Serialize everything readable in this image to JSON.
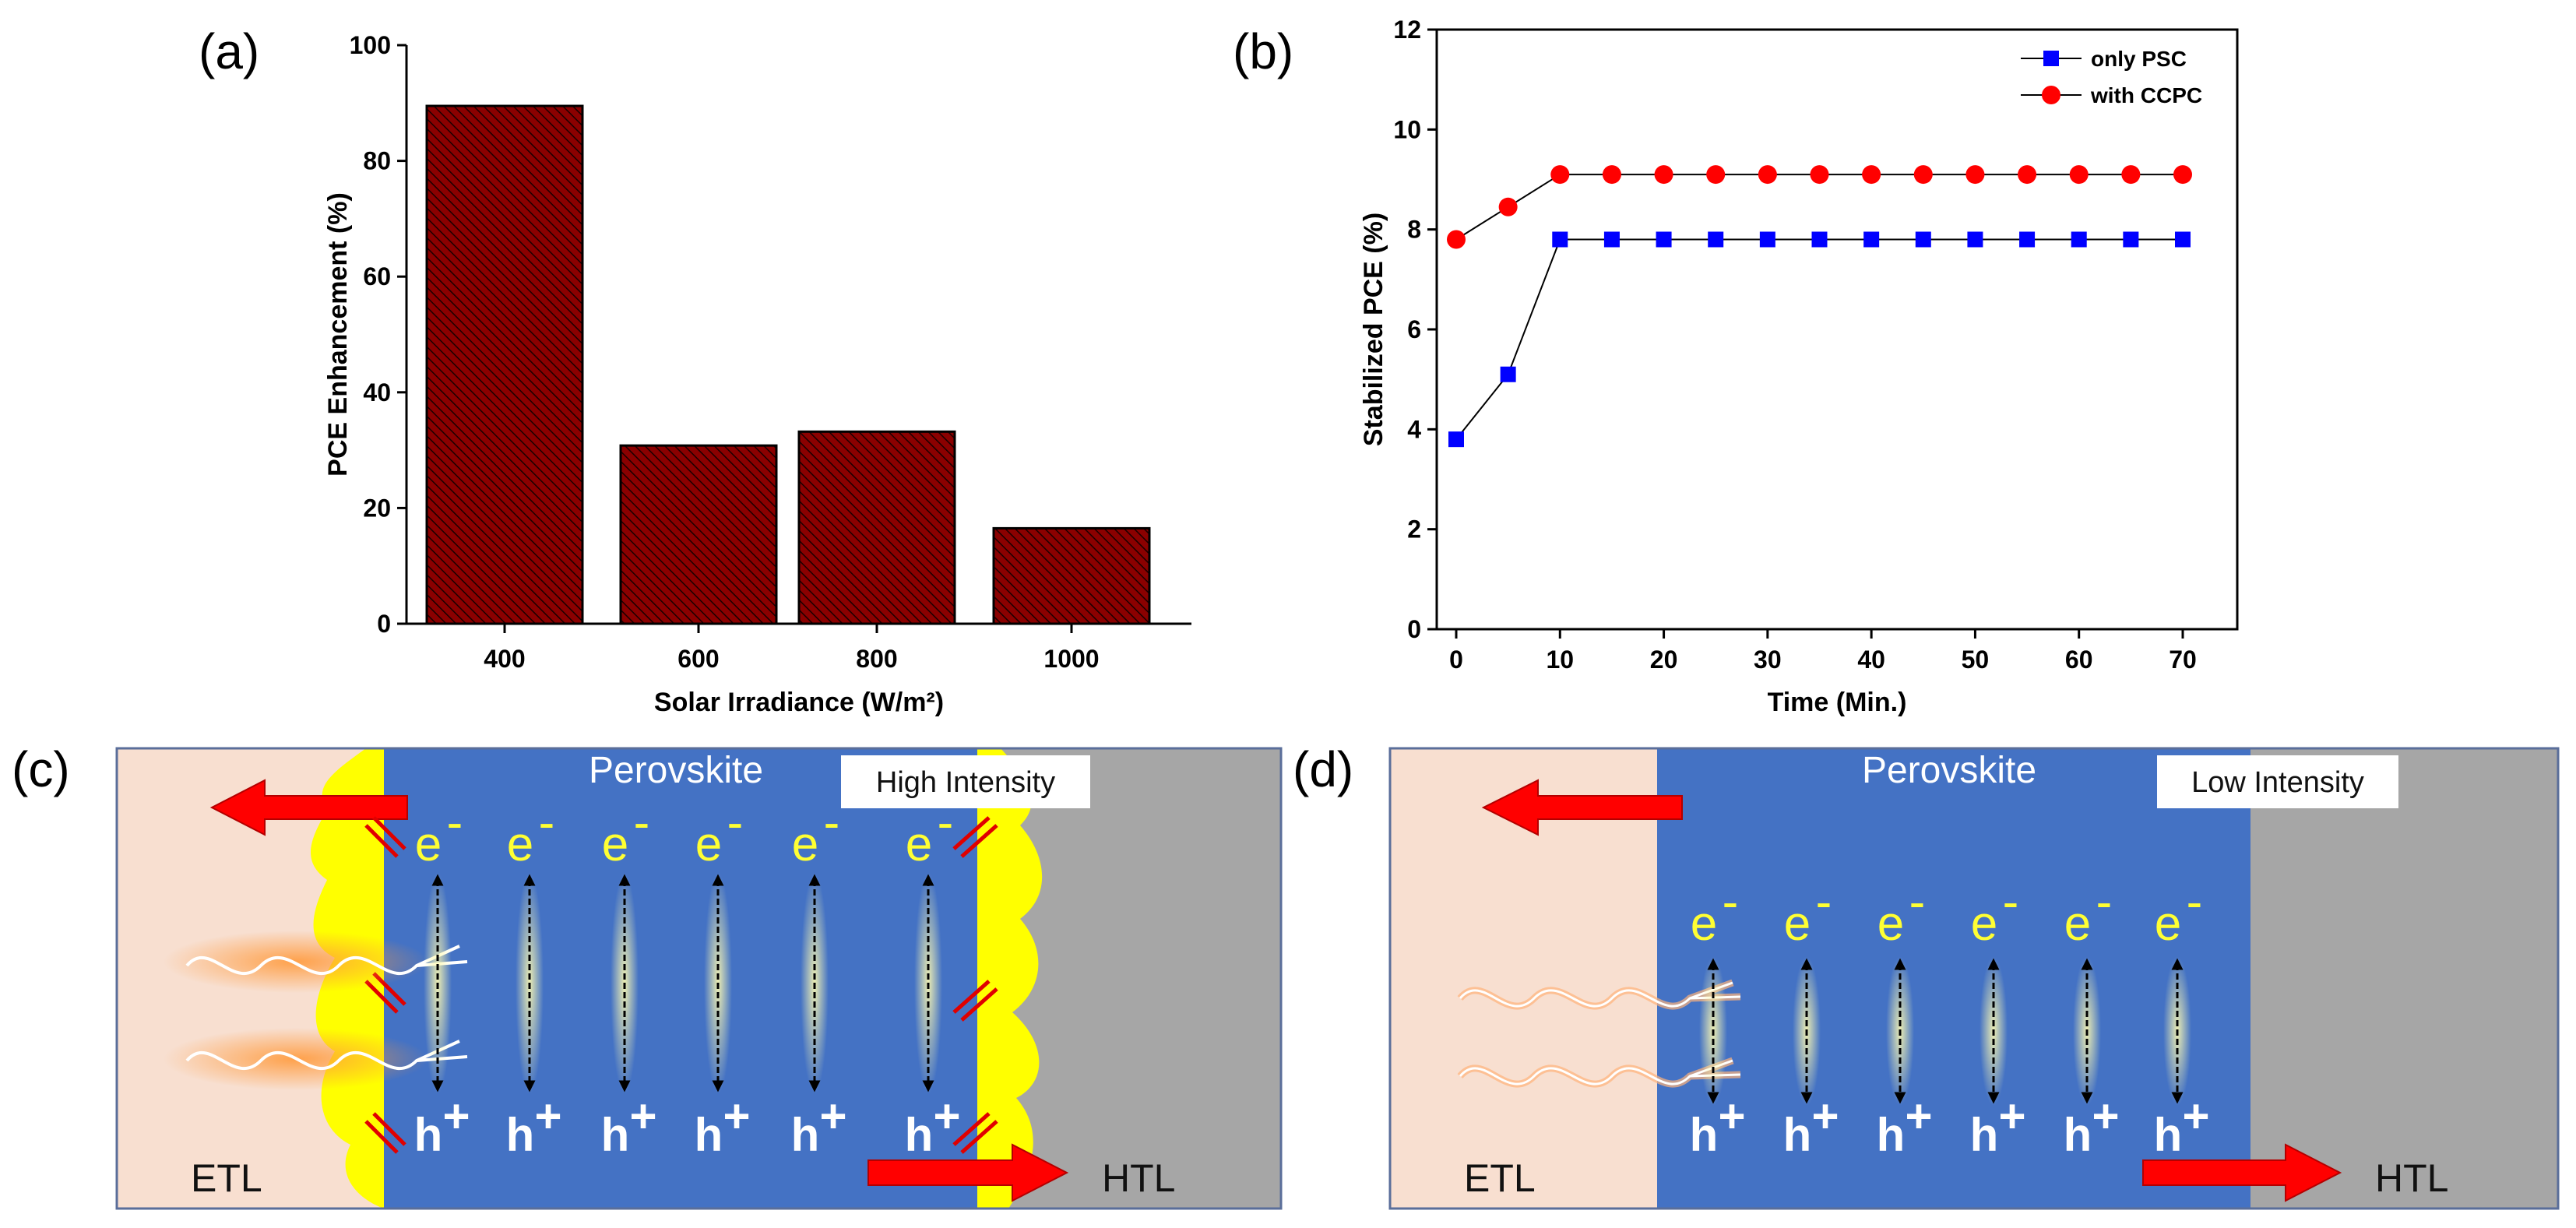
{
  "chart_data": [
    {
      "panel": "(a)",
      "type": "bar",
      "categories": [
        "400",
        "600",
        "800",
        "1000"
      ],
      "values": [
        89.5,
        30.8,
        33.2,
        16.5
      ],
      "xlabel": "Solar Irradiance (W/m²)",
      "ylabel": "PCE Enhancement (%)",
      "ylim": [
        0,
        100
      ],
      "yticks": [
        "0",
        "20",
        "40",
        "60",
        "80",
        "100"
      ],
      "bar_color": "#8b0000"
    },
    {
      "panel": "(b)",
      "type": "line",
      "xlabel": "Time (Min.)",
      "ylabel": "Stabilized PCE (%)",
      "xlim": [
        -0.5,
        72
      ],
      "ylim": [
        0,
        12
      ],
      "xticks": [
        "0",
        "10",
        "20",
        "30",
        "40",
        "50",
        "60",
        "70"
      ],
      "yticks": [
        "0",
        "2",
        "4",
        "6",
        "8",
        "10",
        "12"
      ],
      "x": [
        0,
        5,
        10,
        15,
        20,
        25,
        30,
        35,
        40,
        45,
        50,
        55,
        60,
        65,
        70
      ],
      "series": [
        {
          "name": "only PSC",
          "marker": "square",
          "color": "#0000ff",
          "values": [
            3.8,
            5.1,
            7.8,
            7.8,
            7.8,
            7.8,
            7.8,
            7.8,
            7.8,
            7.8,
            7.8,
            7.8,
            7.8,
            7.8,
            7.8
          ]
        },
        {
          "name": "with CCPC",
          "marker": "circle",
          "color": "#ff0000",
          "values": [
            7.8,
            8.45,
            9.1,
            9.1,
            9.1,
            9.1,
            9.1,
            9.1,
            9.1,
            9.1,
            9.1,
            9.1,
            9.1,
            9.1,
            9.1
          ]
        }
      ],
      "legend": "top-right"
    }
  ],
  "diagrams": {
    "c": {
      "panel": "(c)",
      "title": "Perovskite",
      "intensity_label": "High Intensity",
      "etl_label": "ETL",
      "htl_label": "HTL",
      "electron": "e",
      "electron_sup": "-",
      "hole": "h",
      "hole_sup": "+"
    },
    "d": {
      "panel": "(d)",
      "title": "Perovskite",
      "intensity_label": "Low Intensity",
      "etl_label": "ETL",
      "htl_label": "HTL",
      "electron": "e",
      "electron_sup": "-",
      "hole": "h",
      "hole_sup": "+"
    }
  },
  "colors": {
    "etl": "#f8dfd0",
    "perovskite": "#4472c4",
    "htl": "#a6a6a6",
    "arrow": "#ff0000",
    "yellow": "#ffff00"
  }
}
